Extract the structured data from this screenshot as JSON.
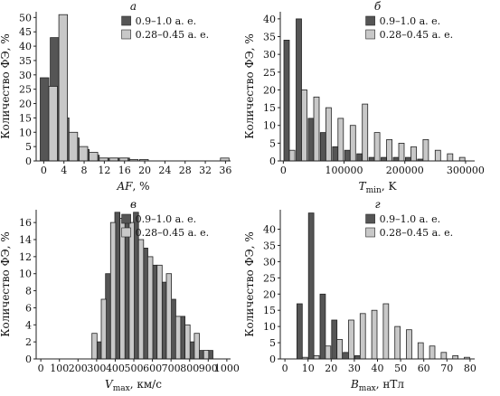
{
  "chart_data": [
    {
      "panel": "а",
      "type": "bar",
      "ylabel": "Количество ФЭ, %",
      "xlabel_main": "AF",
      "xlabel_sub": "",
      "xlabel_unit": ", %",
      "xlim": [
        -1.5,
        37
      ],
      "ylim": [
        0,
        52
      ],
      "xticks": [
        0,
        4,
        8,
        12,
        16,
        20,
        24,
        28,
        32,
        36
      ],
      "xtick_labels": [
        "0",
        "4",
        "8",
        "12",
        "16",
        "20",
        "24",
        "28",
        "32",
        "36"
      ],
      "yticks": [
        0,
        5,
        10,
        15,
        20,
        25,
        30,
        35,
        40,
        45,
        50
      ],
      "ytick_labels": [
        "0",
        "5",
        "10",
        "15",
        "20",
        "25",
        "30",
        "35",
        "40",
        "45",
        "50"
      ],
      "legend_position": "top-right",
      "bin_width": 1.7,
      "series": [
        {
          "name": "0.9–1.0 а. е.",
          "color": "#555555",
          "x": [
            1,
            3,
            5,
            7,
            9,
            11,
            13,
            15,
            17
          ],
          "values": [
            29,
            43,
            15,
            8,
            4,
            2,
            1,
            1,
            1
          ]
        },
        {
          "name": "0.28–0.45 а. е.",
          "color": "#c8c8c8",
          "x": [
            1,
            3,
            5,
            7,
            9,
            11,
            13,
            15,
            17,
            19,
            35
          ],
          "values": [
            26,
            51,
            10,
            5,
            3,
            1,
            1,
            1,
            0.5,
            0.5,
            1
          ]
        }
      ]
    },
    {
      "panel": "б",
      "type": "bar",
      "ylabel": "Количество ФЭ, %",
      "xlabel_main": "T",
      "xlabel_sub": "min",
      "xlabel_unit": ", K",
      "xlim": [
        -5000,
        315000
      ],
      "ylim": [
        0,
        42
      ],
      "xticks": [
        0,
        100000,
        200000,
        300000
      ],
      "xtick_labels": [
        "0",
        "100000",
        "200000",
        "300000"
      ],
      "yticks": [
        0,
        5,
        10,
        15,
        20,
        25,
        30,
        35,
        40
      ],
      "ytick_labels": [
        "0",
        "5",
        "10",
        "15",
        "20",
        "25",
        "30",
        "35",
        "40"
      ],
      "legend_position": "top-right",
      "bin_width": 9000,
      "series": [
        {
          "name": "0.9–1.0 а. е.",
          "color": "#555555",
          "x": [
            10000,
            30000,
            50000,
            70000,
            90000,
            110000,
            130000,
            150000,
            170000,
            190000,
            210000,
            230000
          ],
          "values": [
            34,
            40,
            12,
            8,
            4,
            3,
            2,
            1,
            1,
            1,
            1,
            0.5
          ]
        },
        {
          "name": "0.28–0.45 а. е.",
          "color": "#c8c8c8",
          "x": [
            10000,
            30000,
            50000,
            70000,
            90000,
            110000,
            130000,
            150000,
            170000,
            190000,
            210000,
            230000,
            250000,
            270000,
            290000
          ],
          "values": [
            3,
            20,
            18,
            15,
            12,
            10,
            16,
            8,
            6,
            5,
            4,
            6,
            3,
            2,
            1
          ]
        }
      ]
    },
    {
      "panel": "в",
      "type": "bar",
      "ylabel": "Количество ФЭ, %",
      "xlabel_main": "V",
      "xlabel_sub": "max",
      "xlabel_unit": ", км/с",
      "xlim": [
        -25,
        1020
      ],
      "ylim": [
        0,
        17.5
      ],
      "xticks": [
        0,
        100,
        200,
        300,
        400,
        500,
        600,
        700,
        800,
        900,
        1000
      ],
      "xtick_labels": [
        "0",
        "100",
        "200",
        "300",
        "400",
        "500",
        "600",
        "700",
        "800",
        "900",
        "1000"
      ],
      "yticks": [
        0,
        2,
        4,
        6,
        8,
        10,
        12,
        14,
        16
      ],
      "ytick_labels": [
        "0",
        "2",
        "4",
        "6",
        "8",
        "10",
        "12",
        "14",
        "16"
      ],
      "legend_position": "top-right",
      "bin_width": 27,
      "series": [
        {
          "name": "0.9–1.0 а. е.",
          "color": "#555555",
          "x": [
            325,
            375,
            425,
            475,
            525,
            575,
            625,
            675,
            725,
            775,
            825,
            875,
            925
          ],
          "values": [
            2,
            10,
            17.2,
            16.5,
            17.2,
            13,
            11,
            9,
            7,
            5,
            2,
            1,
            1
          ]
        },
        {
          "name": "0.28–0.45 а. е.",
          "color": "#c8c8c8",
          "x": [
            275,
            325,
            375,
            425,
            475,
            525,
            575,
            625,
            675,
            725,
            775,
            825,
            875
          ],
          "values": [
            3,
            7,
            16,
            16.5,
            16,
            14,
            12,
            11,
            10,
            5,
            4,
            3,
            1
          ]
        }
      ]
    },
    {
      "panel": "г",
      "type": "bar",
      "ylabel": "Количество ФЭ, %",
      "xlabel_main": "B",
      "xlabel_sub": "max",
      "xlabel_unit": ", нТл",
      "xlim": [
        -2,
        82
      ],
      "ylim": [
        0,
        46
      ],
      "xticks": [
        0,
        10,
        20,
        30,
        40,
        50,
        60,
        70,
        80
      ],
      "xtick_labels": [
        "0",
        "10",
        "20",
        "30",
        "40",
        "50",
        "60",
        "70",
        "80"
      ],
      "yticks": [
        0,
        5,
        10,
        15,
        20,
        25,
        30,
        35,
        40
      ],
      "ytick_labels": [
        "0",
        "5",
        "10",
        "15",
        "20",
        "25",
        "30",
        "35",
        "40"
      ],
      "legend_position": "top-right",
      "bin_width": 2.3,
      "series": [
        {
          "name": "0.9–1.0 а. е.",
          "color": "#555555",
          "x": [
            7.5,
            12.5,
            17.5,
            22.5,
            27.5,
            32.5
          ],
          "values": [
            17,
            45,
            20,
            12,
            2,
            1
          ]
        },
        {
          "name": "0.28–0.45 а. е.",
          "color": "#c8c8c8",
          "x": [
            7.5,
            12.5,
            17.5,
            22.5,
            27.5,
            32.5,
            37.5,
            42.5,
            47.5,
            52.5,
            57.5,
            62.5,
            67.5,
            72.5,
            77.5
          ],
          "values": [
            0.5,
            1,
            4,
            6,
            12,
            14,
            15,
            17,
            10,
            9,
            5,
            4,
            2,
            1,
            0.5
          ]
        }
      ]
    }
  ]
}
